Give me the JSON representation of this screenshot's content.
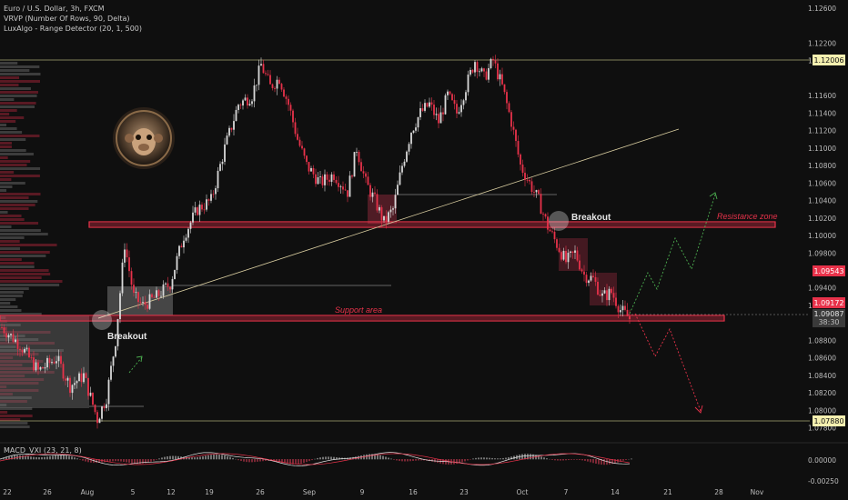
{
  "legend": {
    "symbol": "Euro / U.S. Dollar, 3h, FXCM",
    "ind1": "VRVP (Number Of Rows, 90, Delta)",
    "ind2": "LuxAlgo - Range Detector (20, 1, 500)"
  },
  "macd_label": "MACD_VXI (23, 21, 8)",
  "annotations": {
    "breakout_left": "Breakout",
    "breakout_right": "Breakout",
    "support": "Support area",
    "resistance": "Resistance zone"
  },
  "price_tags": {
    "high": "1.12006",
    "current_red": "1.09543",
    "level_red": "1.09172",
    "last": "1.09087",
    "countdown": "38:30",
    "low": "1.07880"
  },
  "colors": {
    "bull": "#d9d9d9",
    "bear": "#e8324a",
    "support_zone": "#e8324a",
    "background": "#0f0f0f"
  },
  "chart_data": {
    "type": "candlestick",
    "x_ticks": [
      "22",
      "26",
      "Aug",
      "5",
      "12",
      "19",
      "26",
      "Sep",
      "9",
      "16",
      "23",
      "Oct",
      "7",
      "14",
      "21",
      "28",
      "Nov"
    ],
    "y_ticks": [
      "1.12600",
      "1.12200",
      "1.12000",
      "1.11600",
      "1.11400",
      "1.11200",
      "1.11000",
      "1.10800",
      "1.10600",
      "1.10400",
      "1.10200",
      "1.10000",
      "1.09800",
      "1.09400",
      "1.09200",
      "1.08800",
      "1.08600",
      "1.08400",
      "1.08200",
      "1.08000",
      "1.07800"
    ],
    "macd_ticks": [
      "0.00000",
      "-0.00250"
    ],
    "ylim": [
      1.0775,
      1.1265
    ],
    "levels": {
      "range_high": 1.12006,
      "range_low": 1.0788,
      "resistance_zone": [
        1.1009,
        1.1016
      ],
      "support_zone": [
        1.0911,
        1.0918
      ]
    },
    "price_path": [
      [
        0,
        1.0895
      ],
      [
        4,
        1.0875
      ],
      [
        8,
        1.0845
      ],
      [
        12,
        1.086
      ],
      [
        15,
        1.0828
      ],
      [
        18,
        1.084
      ],
      [
        21,
        1.079
      ],
      [
        23,
        1.0815
      ],
      [
        25,
        1.088
      ],
      [
        27,
        1.099
      ],
      [
        29,
        1.093
      ],
      [
        31,
        1.092
      ],
      [
        34,
        1.093
      ],
      [
        37,
        1.0945
      ],
      [
        40,
        1.1
      ],
      [
        43,
        1.103
      ],
      [
        46,
        1.104
      ],
      [
        49,
        1.11
      ],
      [
        52,
        1.115
      ],
      [
        55,
        1.116
      ],
      [
        57,
        1.1195
      ],
      [
        59,
        1.117
      ],
      [
        61,
        1.118
      ],
      [
        63,
        1.115
      ],
      [
        65,
        1.111
      ],
      [
        67,
        1.108
      ],
      [
        70,
        1.106
      ],
      [
        73,
        1.107
      ],
      [
        76,
        1.105
      ],
      [
        78,
        1.11
      ],
      [
        80,
        1.106
      ],
      [
        82,
        1.104
      ],
      [
        84,
        1.1015
      ],
      [
        86,
        1.103
      ],
      [
        88,
        1.108
      ],
      [
        90,
        1.112
      ],
      [
        92,
        1.114
      ],
      [
        94,
        1.115
      ],
      [
        96,
        1.113
      ],
      [
        98,
        1.116
      ],
      [
        100,
        1.114
      ],
      [
        102,
        1.117
      ],
      [
        104,
        1.12
      ],
      [
        106,
        1.118
      ],
      [
        108,
        1.12
      ],
      [
        110,
        1.117
      ],
      [
        112,
        1.113
      ],
      [
        114,
        1.108
      ],
      [
        116,
        1.106
      ],
      [
        118,
        1.104
      ],
      [
        120,
        1.101
      ],
      [
        122,
        1.099
      ],
      [
        124,
        1.097
      ],
      [
        126,
        1.098
      ],
      [
        128,
        1.0955
      ],
      [
        130,
        1.095
      ],
      [
        132,
        1.093
      ],
      [
        134,
        1.0935
      ],
      [
        136,
        1.0915
      ],
      [
        138,
        1.0905
      ]
    ]
  }
}
